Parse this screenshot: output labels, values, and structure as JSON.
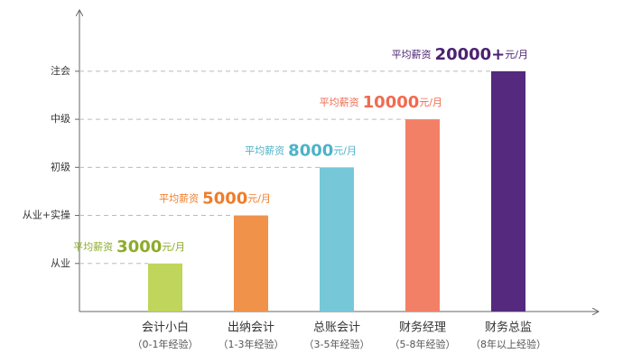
{
  "chart_data": {
    "type": "bar",
    "categories": [
      "会计小白",
      "出纳会计",
      "总账会计",
      "财务经理",
      "财务总监"
    ],
    "subcategories": [
      "（0-1年经验）",
      "（1-3年经验）",
      "（3-5年经验）",
      "（5-8年经验）",
      "（8年以上经验）"
    ],
    "values": [
      1,
      2,
      3,
      4,
      5
    ],
    "colors": [
      "#bfd55b",
      "#f0924a",
      "#76c8d8",
      "#f28067",
      "#54297e"
    ],
    "label_colors": [
      "#8dab2a",
      "#ef7d2a",
      "#4db2c8",
      "#f06a4f",
      "#4b2271"
    ],
    "salaries": [
      {
        "prefix": "平均薪资",
        "amount": "3000",
        "unit": "元/月"
      },
      {
        "prefix": "平均薪资",
        "amount": "5000",
        "unit": "元/月"
      },
      {
        "prefix": "平均薪资",
        "amount": "8000",
        "unit": "元/月"
      },
      {
        "prefix": "平均薪资",
        "amount": "10000",
        "unit": "元/月"
      },
      {
        "prefix": "平均薪资",
        "amount": "20000+",
        "unit": "元/月"
      }
    ],
    "ylim": [
      0,
      6.2
    ],
    "yticks": [
      {
        "value": 1,
        "label": "从业"
      },
      {
        "value": 2,
        "label": "从业+实操"
      },
      {
        "value": 3,
        "label": "初级"
      },
      {
        "value": 4,
        "label": "中级"
      },
      {
        "value": 5,
        "label": "注会"
      }
    ],
    "grid": true
  }
}
